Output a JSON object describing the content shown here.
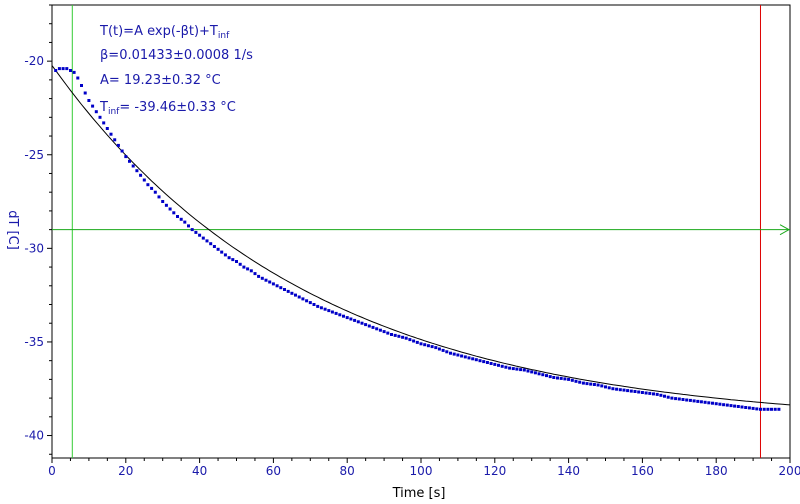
{
  "chart_data": {
    "type": "scatter",
    "xlabel": "Time [s]",
    "ylabel": "dT [C]",
    "xlim": [
      0,
      200
    ],
    "ylim": [
      -41.2,
      -17.0
    ],
    "x_ticks": [
      0,
      20,
      40,
      60,
      80,
      100,
      120,
      140,
      160,
      180,
      200
    ],
    "y_ticks": [
      -20,
      -25,
      -30,
      -35,
      -40
    ],
    "grid": false,
    "colors": {
      "axis_text": "#1a1aaa",
      "markers": "#0000c8",
      "fit_line": "#000000",
      "green_line": "#1aa81a",
      "green_vertical": "#33cc33",
      "red_line": "#dd0000"
    },
    "annotations": {
      "line1": "T(t)=A exp(-βt)+T",
      "line1_sub": "inf",
      "line2": "β=0.01433±0.0008 1/s",
      "line3": "A= 19.23±0.32 °C",
      "line4_pre": "T",
      "line4_sub": "inf",
      "line4_post": "= -39.46±0.33 °C"
    },
    "fit": {
      "A": 19.23,
      "beta": 0.01433,
      "T_inf": -39.46
    },
    "reference_lines": {
      "vertical_green_x": 5.5,
      "vertical_red_x": 192,
      "horizontal_green_y": -29.0
    },
    "series": [
      {
        "x": [
          1,
          2,
          3,
          4,
          5,
          6,
          7,
          8,
          9,
          10,
          12,
          14,
          16,
          18,
          20,
          22,
          24,
          26,
          28,
          30,
          32,
          34,
          36,
          38,
          40,
          42,
          44,
          46,
          48,
          50,
          52,
          54,
          56,
          58,
          60,
          64,
          68,
          72,
          76,
          80,
          84,
          88,
          92,
          96,
          100,
          104,
          108,
          112,
          116,
          120,
          124,
          128,
          132,
          136,
          140,
          144,
          148,
          152,
          156,
          160,
          164,
          168,
          172,
          176,
          180,
          184,
          188,
          192,
          195,
          197
        ],
        "y": [
          -20.5,
          -20.4,
          -20.4,
          -20.4,
          -20.5,
          -20.6,
          -20.9,
          -21.3,
          -21.7,
          -22.1,
          -22.7,
          -23.3,
          -23.9,
          -24.5,
          -25.1,
          -25.6,
          -26.1,
          -26.6,
          -27.0,
          -27.5,
          -27.9,
          -28.3,
          -28.6,
          -29.0,
          -29.3,
          -29.6,
          -29.9,
          -30.2,
          -30.5,
          -30.7,
          -31.0,
          -31.2,
          -31.5,
          -31.7,
          -31.9,
          -32.3,
          -32.7,
          -33.1,
          -33.4,
          -33.7,
          -34.0,
          -34.3,
          -34.6,
          -34.8,
          -35.1,
          -35.3,
          -35.6,
          -35.8,
          -36.0,
          -36.2,
          -36.4,
          -36.5,
          -36.7,
          -36.9,
          -37.0,
          -37.2,
          -37.3,
          -37.5,
          -37.6,
          -37.7,
          -37.8,
          -38.0,
          -38.1,
          -38.2,
          -38.3,
          -38.4,
          -38.5,
          -38.6,
          -38.6,
          -38.6
        ]
      }
    ]
  }
}
